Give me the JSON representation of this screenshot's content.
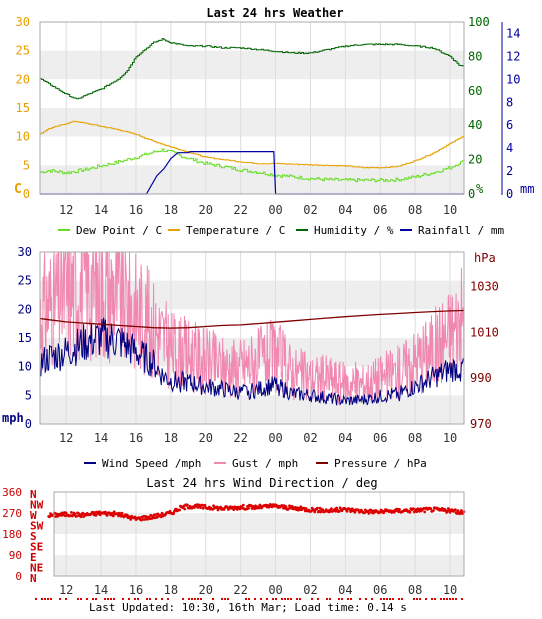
{
  "chart_data": [
    {
      "type": "line",
      "title": "Last 24 hrs Weather",
      "x_ticks": [
        "12",
        "14",
        "16",
        "18",
        "20",
        "22",
        "00",
        "02",
        "04",
        "06",
        "08",
        "10"
      ],
      "left_axis": {
        "label": "C",
        "ticks": [
          0,
          5,
          10,
          15,
          20,
          25,
          30
        ],
        "range": [
          0,
          30
        ],
        "color": "#e8a000"
      },
      "right_axis_1": {
        "label": "%",
        "ticks": [
          0,
          20,
          40,
          60,
          80,
          100
        ],
        "range": [
          0,
          100
        ],
        "color": "#006400"
      },
      "right_axis_2": {
        "label": "mm",
        "ticks": [
          0,
          2,
          4,
          6,
          8,
          10,
          12,
          14
        ],
        "range": [
          0,
          15
        ],
        "color": "#0000a0"
      },
      "legend_position": "bottom",
      "series": [
        {
          "name": "Dew Point / C",
          "axis": "left",
          "color": "#66dd22",
          "points": [
            [
              10.5,
              3.8
            ],
            [
              11,
              4.1
            ],
            [
              12,
              3.7
            ],
            [
              13,
              4.2
            ],
            [
              14,
              4.9
            ],
            [
              15,
              5.6
            ],
            [
              16,
              6.4
            ],
            [
              17,
              7.3
            ],
            [
              17.5,
              7.7
            ],
            [
              18,
              7.3
            ],
            [
              19,
              6.2
            ],
            [
              20,
              5.3
            ],
            [
              21,
              4.8
            ],
            [
              22,
              4.2
            ],
            [
              23,
              3.8
            ],
            [
              24,
              3.3
            ],
            [
              25,
              3.0
            ],
            [
              26,
              2.7
            ],
            [
              27,
              2.5
            ],
            [
              28,
              2.4
            ],
            [
              29,
              2.4
            ],
            [
              30,
              2.4
            ],
            [
              31,
              2.5
            ],
            [
              32,
              3.0
            ],
            [
              33,
              3.7
            ],
            [
              34,
              4.6
            ],
            [
              34.5,
              5.4
            ],
            [
              34.8,
              5.7
            ]
          ]
        },
        {
          "name": "Temperature / C",
          "axis": "left",
          "color": "#e8a000",
          "points": [
            [
              10.5,
              10.5
            ],
            [
              11,
              11.4
            ],
            [
              12,
              12.3
            ],
            [
              12.5,
              12.7
            ],
            [
              13,
              12.4
            ],
            [
              14,
              11.8
            ],
            [
              15,
              11.2
            ],
            [
              16,
              10.4
            ],
            [
              17,
              9.2
            ],
            [
              18,
              8.2
            ],
            [
              19,
              7.3
            ],
            [
              20,
              6.4
            ],
            [
              21,
              6.0
            ],
            [
              22,
              5.6
            ],
            [
              23,
              5.3
            ],
            [
              24,
              5.3
            ],
            [
              25,
              5.2
            ],
            [
              26,
              5.1
            ],
            [
              27,
              5.0
            ],
            [
              28,
              4.9
            ],
            [
              29,
              4.6
            ],
            [
              30,
              4.6
            ],
            [
              31,
              4.8
            ],
            [
              32,
              5.8
            ],
            [
              33,
              7.1
            ],
            [
              34,
              8.8
            ],
            [
              34.8,
              10.2
            ]
          ]
        },
        {
          "name": "Humidity / %",
          "axis": "right_1",
          "color": "#006400",
          "points": [
            [
              10.5,
              67
            ],
            [
              11,
              64
            ],
            [
              12,
              58
            ],
            [
              12.6,
              55
            ],
            [
              13,
              57
            ],
            [
              14,
              61
            ],
            [
              15,
              67
            ],
            [
              15.5,
              72
            ],
            [
              16,
              80
            ],
            [
              17,
              88
            ],
            [
              17.5,
              90
            ],
            [
              18,
              88
            ],
            [
              19,
              86
            ],
            [
              20,
              86
            ],
            [
              21,
              85
            ],
            [
              22,
              85
            ],
            [
              23,
              84
            ],
            [
              24,
              83
            ],
            [
              25,
              82
            ],
            [
              26,
              82
            ],
            [
              27,
              84
            ],
            [
              28,
              86
            ],
            [
              29,
              87
            ],
            [
              30,
              87
            ],
            [
              31,
              87
            ],
            [
              32,
              86
            ],
            [
              33,
              85
            ],
            [
              34,
              80
            ],
            [
              34.5,
              75
            ],
            [
              34.8,
              74
            ]
          ]
        },
        {
          "name": "Rainfall / mm",
          "axis": "right_2",
          "color": "#0000a0",
          "points": [
            [
              10.5,
              0
            ],
            [
              16.6,
              0
            ],
            [
              17.2,
              1.6
            ],
            [
              17.6,
              2.2
            ],
            [
              18,
              3.1
            ],
            [
              18.4,
              3.6
            ],
            [
              18.7,
              3.6
            ],
            [
              19,
              3.6
            ],
            [
              19.1,
              3.7
            ],
            [
              23.9,
              3.7
            ],
            [
              24,
              0
            ],
            [
              34.8,
              0
            ]
          ]
        }
      ]
    },
    {
      "type": "line",
      "title": "",
      "x_ticks": [
        "12",
        "14",
        "16",
        "18",
        "20",
        "22",
        "00",
        "02",
        "04",
        "06",
        "08",
        "10"
      ],
      "left_axis": {
        "label": "mph",
        "ticks": [
          0,
          5,
          10,
          15,
          20,
          25,
          30
        ],
        "range": [
          0,
          30
        ],
        "color": "#000080"
      },
      "right_axis_1": {
        "label": "hPa",
        "ticks": [
          970,
          990,
          1010,
          1030
        ],
        "range": [
          970,
          1045
        ],
        "color": "#800000"
      },
      "legend_position": "bottom",
      "series": [
        {
          "name": "Wind Speed /mph",
          "axis": "left",
          "color": "#000080",
          "points": [
            [
              10.5,
              10.5
            ],
            [
              11,
              11.5
            ],
            [
              12,
              12.5
            ],
            [
              13,
              14
            ],
            [
              14,
              15
            ],
            [
              15,
              14.5
            ],
            [
              16,
              12.5
            ],
            [
              17,
              10.5
            ],
            [
              17.5,
              8.5
            ],
            [
              18,
              7.5
            ],
            [
              19,
              7.2
            ],
            [
              20,
              6.5
            ],
            [
              21,
              6.0
            ],
            [
              22,
              5.5
            ],
            [
              23,
              6.0
            ],
            [
              24,
              6.8
            ],
            [
              25,
              5.2
            ],
            [
              26,
              5.0
            ],
            [
              27,
              4.5
            ],
            [
              28,
              4.0
            ],
            [
              29,
              4.2
            ],
            [
              30,
              4.8
            ],
            [
              31,
              5.2
            ],
            [
              32,
              6.5
            ],
            [
              33,
              8.0
            ],
            [
              34,
              9.5
            ],
            [
              34.8,
              10.0
            ]
          ]
        },
        {
          "name": "Gust / mph",
          "axis": "left",
          "color": "#f088b0",
          "points": [
            [
              10.5,
              19
            ],
            [
              11,
              21
            ],
            [
              12,
              23
            ],
            [
              13,
              24
            ],
            [
              14,
              24
            ],
            [
              15,
              23
            ],
            [
              16,
              20
            ],
            [
              17,
              17
            ],
            [
              18,
              13
            ],
            [
              19,
              12
            ],
            [
              20,
              11
            ],
            [
              21,
              10
            ],
            [
              22,
              10
            ],
            [
              23,
              11
            ],
            [
              24,
              12
            ],
            [
              25,
              9
            ],
            [
              26,
              8
            ],
            [
              27,
              8
            ],
            [
              28,
              7
            ],
            [
              29,
              7
            ],
            [
              30,
              8
            ],
            [
              31,
              9
            ],
            [
              32,
              11
            ],
            [
              33,
              13
            ],
            [
              34,
              16
            ],
            [
              34.8,
              18
            ]
          ]
        },
        {
          "name": "Pressure / hPa",
          "axis": "right_1",
          "color": "#800000",
          "points": [
            [
              10.5,
              1016
            ],
            [
              11,
              1015.5
            ],
            [
              12,
              1014.5
            ],
            [
              13,
              1014
            ],
            [
              14,
              1013.5
            ],
            [
              15,
              1013
            ],
            [
              16,
              1012.5
            ],
            [
              17,
              1012
            ],
            [
              18,
              1011.8
            ],
            [
              19,
              1012
            ],
            [
              20,
              1012.5
            ],
            [
              21,
              1013
            ],
            [
              22,
              1013.2
            ],
            [
              23,
              1013.8
            ],
            [
              24,
              1014.4
            ],
            [
              25,
              1015
            ],
            [
              26,
              1015.6
            ],
            [
              27,
              1016.2
            ],
            [
              28,
              1016.8
            ],
            [
              29,
              1017.3
            ],
            [
              30,
              1017.8
            ],
            [
              31,
              1018.2
            ],
            [
              32,
              1018.6
            ],
            [
              33,
              1019
            ],
            [
              34,
              1019.3
            ],
            [
              34.8,
              1019.5
            ]
          ]
        }
      ]
    },
    {
      "type": "line",
      "title": "Last 24 hrs Wind Direction / deg",
      "x_ticks": [
        "12",
        "14",
        "16",
        "18",
        "20",
        "22",
        "00",
        "02",
        "04",
        "06",
        "08",
        "10"
      ],
      "left_axis": {
        "label": "",
        "ticks": [
          0,
          90,
          180,
          270,
          360
        ],
        "range": [
          0,
          360
        ],
        "color": "#cc0000"
      },
      "compass_labels": [
        "N",
        "NW",
        "W",
        "SW",
        "S",
        "SE",
        "E",
        "NE",
        "N"
      ],
      "series": [
        {
          "name": "Wind Direction",
          "color": "#dd0000",
          "points": [
            [
              10.5,
              255
            ],
            [
              11,
              260
            ],
            [
              12,
              265
            ],
            [
              13,
              262
            ],
            [
              14,
              270
            ],
            [
              15,
              265
            ],
            [
              16,
              245
            ],
            [
              17,
              255
            ],
            [
              18,
              270
            ],
            [
              18.5,
              290
            ],
            [
              19,
              300
            ],
            [
              20,
              295
            ],
            [
              21,
              290
            ],
            [
              22,
              295
            ],
            [
              23,
              295
            ],
            [
              24,
              300
            ],
            [
              25,
              290
            ],
            [
              26,
              285
            ],
            [
              27,
              280
            ],
            [
              28,
              285
            ],
            [
              29,
              278
            ],
            [
              30,
              275
            ],
            [
              31,
              280
            ],
            [
              32,
              282
            ],
            [
              33,
              285
            ],
            [
              34,
              280
            ],
            [
              34.8,
              270
            ]
          ]
        }
      ]
    }
  ],
  "footer": {
    "text": "Last Updated: 10:30, 16th Mar; Load time: 0.14 s"
  }
}
